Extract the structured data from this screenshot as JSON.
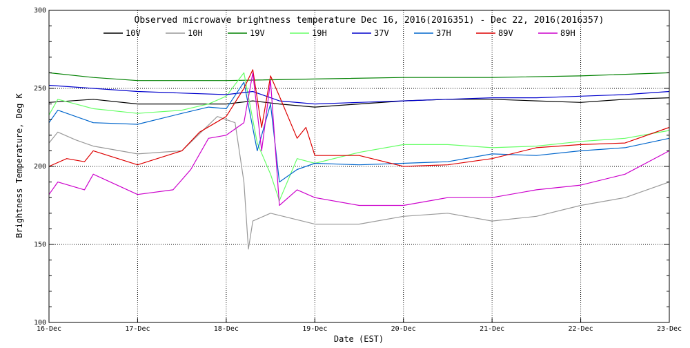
{
  "chart_data": {
    "type": "line",
    "title": "Observed microwave brightness temperature Dec 16, 2016(2016351) - Dec 22, 2016(2016357)",
    "xlabel": "Date (EST)",
    "ylabel": "Brightness Temperature, Deg K",
    "xlim": [
      0,
      7
    ],
    "ylim": [
      100,
      300
    ],
    "x_ticks": [
      {
        "x": 0,
        "label": "16-Dec"
      },
      {
        "x": 1,
        "label": "17-Dec"
      },
      {
        "x": 2,
        "label": "18-Dec"
      },
      {
        "x": 3,
        "label": "19-Dec"
      },
      {
        "x": 4,
        "label": "20-Dec"
      },
      {
        "x": 5,
        "label": "21-Dec"
      },
      {
        "x": 6,
        "label": "22-Dec"
      },
      {
        "x": 7,
        "label": "23-Dec"
      }
    ],
    "y_ticks": [
      {
        "y": 100,
        "label": "100"
      },
      {
        "y": 150,
        "label": "150"
      },
      {
        "y": 200,
        "label": "200"
      },
      {
        "y": 250,
        "label": "250"
      },
      {
        "y": 300,
        "label": "300"
      }
    ],
    "grid": "dotted",
    "legend_position": "top",
    "series": [
      {
        "name": "10V",
        "color": "#000000",
        "x": [
          0,
          0.5,
          1.0,
          1.5,
          2.0,
          2.3,
          2.6,
          3.0,
          3.5,
          4.0,
          4.5,
          5.0,
          5.5,
          6.0,
          6.5,
          7.0
        ],
        "y": [
          241,
          243,
          240,
          240,
          240,
          242,
          240,
          238,
          240,
          242,
          243,
          243,
          242,
          241,
          243,
          244
        ]
      },
      {
        "name": "10H",
        "color": "#999999",
        "x": [
          0,
          0.1,
          0.3,
          0.5,
          1.0,
          1.5,
          1.9,
          2.1,
          2.2,
          2.25,
          2.3,
          2.5,
          3.0,
          3.5,
          4.0,
          4.5,
          5.0,
          5.5,
          6.0,
          6.5,
          7.0
        ],
        "y": [
          215,
          222,
          217,
          213,
          208,
          210,
          232,
          228,
          190,
          147,
          165,
          170,
          163,
          163,
          168,
          170,
          165,
          168,
          175,
          180,
          190
        ]
      },
      {
        "name": "19V",
        "color": "#008000",
        "x": [
          0,
          0.5,
          1.0,
          1.5,
          2.0,
          3.0,
          4.0,
          5.0,
          6.0,
          7.0
        ],
        "y": [
          260,
          257,
          255,
          255,
          255,
          256,
          257,
          257,
          258,
          260
        ]
      },
      {
        "name": "19H",
        "color": "#66ff66",
        "x": [
          0,
          0.1,
          0.5,
          1.0,
          1.5,
          1.8,
          2.0,
          2.2,
          2.35,
          2.5,
          2.6,
          2.8,
          3.0,
          3.5,
          4.0,
          4.5,
          5.0,
          5.5,
          6.0,
          6.5,
          7.0
        ],
        "y": [
          233,
          243,
          237,
          234,
          236,
          240,
          245,
          260,
          215,
          195,
          178,
          205,
          202,
          209,
          214,
          214,
          212,
          213,
          216,
          218,
          223
        ]
      },
      {
        "name": "37V",
        "color": "#0000cc",
        "x": [
          0,
          0.5,
          1.0,
          1.5,
          2.0,
          2.3,
          2.6,
          3.0,
          3.5,
          4.0,
          4.5,
          5.0,
          5.5,
          6.0,
          6.5,
          7.0
        ],
        "y": [
          252,
          250,
          248,
          247,
          246,
          248,
          242,
          240,
          241,
          242,
          243,
          244,
          244,
          245,
          246,
          248
        ]
      },
      {
        "name": "37H",
        "color": "#0066cc",
        "x": [
          0,
          0.1,
          0.5,
          1.0,
          1.5,
          1.8,
          2.0,
          2.2,
          2.35,
          2.5,
          2.6,
          2.8,
          3.0,
          3.5,
          4.0,
          4.5,
          5.0,
          5.5,
          6.0,
          6.5,
          7.0
        ],
        "y": [
          228,
          236,
          228,
          227,
          234,
          238,
          237,
          254,
          210,
          240,
          190,
          198,
          202,
          201,
          202,
          203,
          208,
          207,
          210,
          212,
          218
        ]
      },
      {
        "name": "89V",
        "color": "#dd0000",
        "x": [
          0,
          0.2,
          0.4,
          0.5,
          1.0,
          1.5,
          1.7,
          2.0,
          2.2,
          2.3,
          2.4,
          2.5,
          2.6,
          2.8,
          2.9,
          3.0,
          3.5,
          4.0,
          4.5,
          5.0,
          5.5,
          6.0,
          6.5,
          7.0
        ],
        "y": [
          200,
          205,
          203,
          210,
          201,
          210,
          222,
          232,
          250,
          262,
          225,
          258,
          245,
          218,
          225,
          207,
          207,
          200,
          201,
          205,
          212,
          214,
          215,
          225
        ]
      },
      {
        "name": "89H",
        "color": "#cc00cc",
        "x": [
          0,
          0.1,
          0.4,
          0.5,
          1.0,
          1.4,
          1.6,
          1.8,
          2.0,
          2.2,
          2.3,
          2.4,
          2.5,
          2.6,
          2.8,
          3.0,
          3.5,
          4.0,
          4.5,
          5.0,
          5.5,
          6.0,
          6.5,
          7.0
        ],
        "y": [
          182,
          190,
          185,
          195,
          182,
          185,
          198,
          218,
          220,
          228,
          260,
          210,
          255,
          175,
          185,
          180,
          175,
          175,
          180,
          180,
          185,
          188,
          195,
          210
        ]
      }
    ]
  }
}
